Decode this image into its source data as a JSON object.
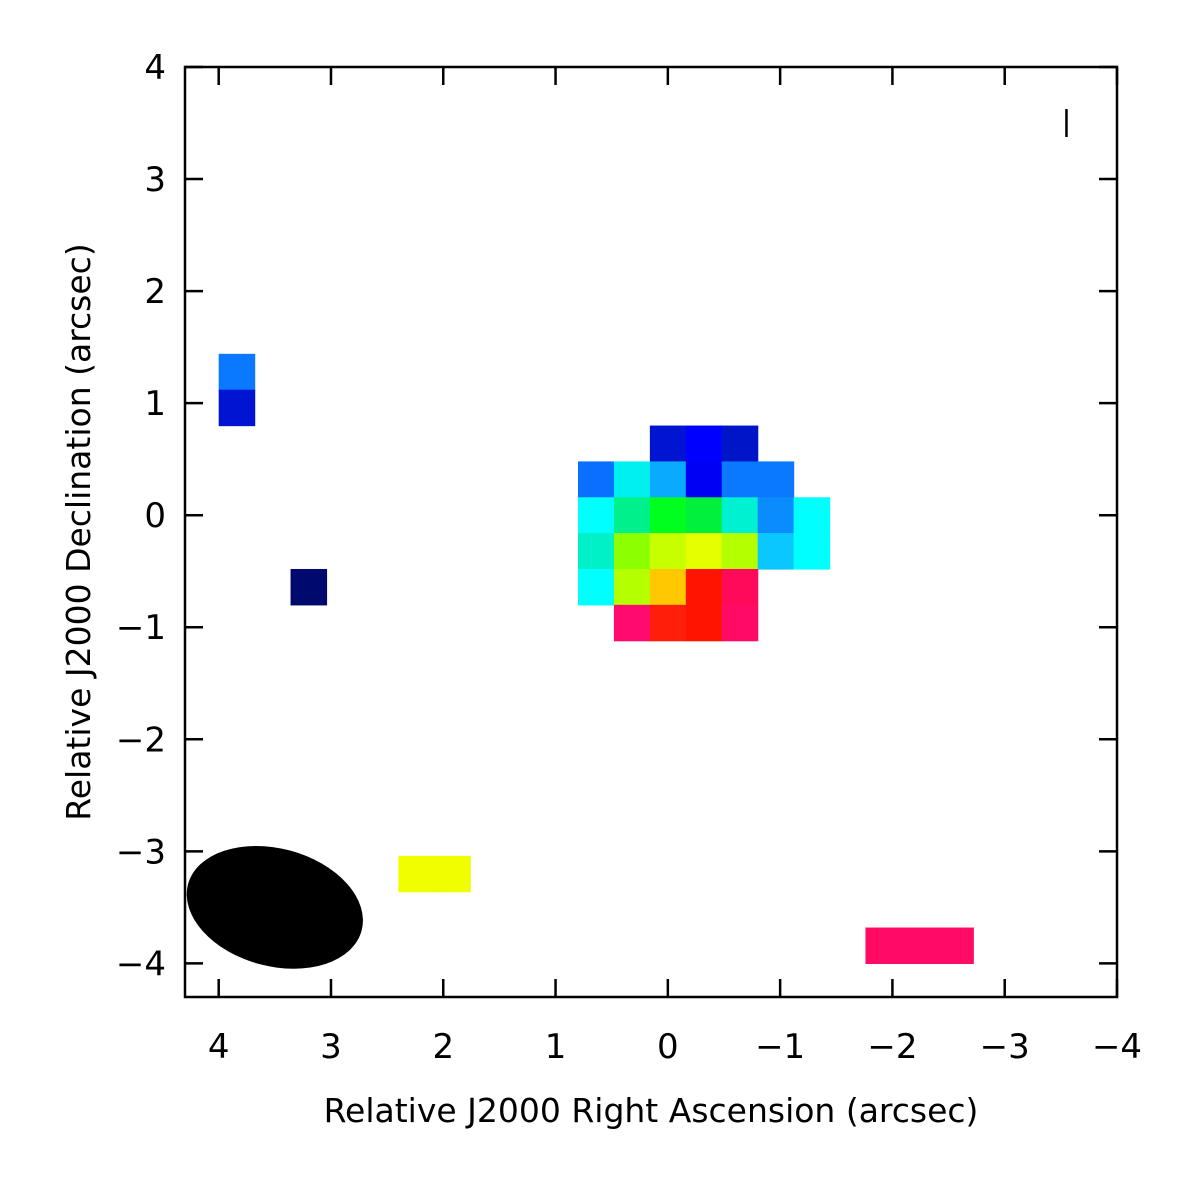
{
  "chart_data": {
    "type": "heatmap",
    "title": "",
    "xlabel": "Relative J2000 Right Ascension (arcsec)",
    "ylabel": "Relative J2000 Declination (arcsec)",
    "xlim": [
      4.3,
      -4.0
    ],
    "ylim": [
      -4.3,
      4.0
    ],
    "x_reversed": true,
    "xticks": [
      4,
      3,
      2,
      1,
      0,
      -1,
      -2,
      -3,
      -4
    ],
    "xtick_labels": [
      "4",
      "3",
      "2",
      "1",
      "0",
      "−1",
      "−2",
      "−3",
      "−4"
    ],
    "yticks": [
      4,
      3,
      2,
      1,
      0,
      -1,
      -2,
      -3,
      -4
    ],
    "ytick_labels": [
      "4",
      "3",
      "2",
      "1",
      "0",
      "−1",
      "−2",
      "−3",
      "−4"
    ],
    "grid": false,
    "pixel_size_arcsec": 0.32,
    "pixels": [
      {
        "ra": 3.84,
        "dec": 1.28,
        "color": "#0a78ff"
      },
      {
        "ra": 3.84,
        "dec": 0.96,
        "color": "#0014d2"
      },
      {
        "ra": 3.2,
        "dec": -0.64,
        "color": "#000a6e"
      },
      {
        "ra": 0.0,
        "dec": 0.64,
        "color": "#0014d2"
      },
      {
        "ra": -0.32,
        "dec": 0.64,
        "color": "#0000ff"
      },
      {
        "ra": -0.64,
        "dec": 0.64,
        "color": "#0014c8"
      },
      {
        "ra": 0.64,
        "dec": 0.32,
        "color": "#0a6eff"
      },
      {
        "ra": 0.32,
        "dec": 0.32,
        "color": "#00f0f0"
      },
      {
        "ra": 0.0,
        "dec": 0.32,
        "color": "#0aaaff"
      },
      {
        "ra": -0.32,
        "dec": 0.32,
        "color": "#0000f5"
      },
      {
        "ra": -0.64,
        "dec": 0.32,
        "color": "#0a78ff"
      },
      {
        "ra": -0.96,
        "dec": 0.32,
        "color": "#0a78ff"
      },
      {
        "ra": 0.64,
        "dec": 0.0,
        "color": "#00ffff"
      },
      {
        "ra": 0.32,
        "dec": 0.0,
        "color": "#00f08c"
      },
      {
        "ra": 0.0,
        "dec": 0.0,
        "color": "#00ff1e"
      },
      {
        "ra": -0.32,
        "dec": 0.0,
        "color": "#00f03c"
      },
      {
        "ra": -0.64,
        "dec": 0.0,
        "color": "#00f0d2"
      },
      {
        "ra": -0.96,
        "dec": 0.0,
        "color": "#0a8cff"
      },
      {
        "ra": -1.28,
        "dec": 0.0,
        "color": "#00ffff"
      },
      {
        "ra": 0.64,
        "dec": -0.32,
        "color": "#00f0c8"
      },
      {
        "ra": 0.32,
        "dec": -0.32,
        "color": "#8cff00"
      },
      {
        "ra": 0.0,
        "dec": -0.32,
        "color": "#c8ff00"
      },
      {
        "ra": -0.32,
        "dec": -0.32,
        "color": "#e6ff00"
      },
      {
        "ra": -0.64,
        "dec": -0.32,
        "color": "#b4ff00"
      },
      {
        "ra": -0.96,
        "dec": -0.32,
        "color": "#0ac8ff"
      },
      {
        "ra": -1.28,
        "dec": -0.32,
        "color": "#00ffff"
      },
      {
        "ra": 0.64,
        "dec": -0.64,
        "color": "#00ffff"
      },
      {
        "ra": 0.32,
        "dec": -0.64,
        "color": "#b4ff00"
      },
      {
        "ra": 0.0,
        "dec": -0.64,
        "color": "#ffc800"
      },
      {
        "ra": -0.32,
        "dec": -0.64,
        "color": "#ff1400"
      },
      {
        "ra": -0.64,
        "dec": -0.64,
        "color": "#ff0a5a"
      },
      {
        "ra": 0.32,
        "dec": -0.96,
        "color": "#ff0a6e"
      },
      {
        "ra": 0.0,
        "dec": -0.96,
        "color": "#ff1e0a"
      },
      {
        "ra": -0.32,
        "dec": -0.96,
        "color": "#ff1400"
      },
      {
        "ra": -0.64,
        "dec": -0.96,
        "color": "#ff0a64"
      },
      {
        "ra": 2.24,
        "dec": -3.2,
        "color": "#f0ff00"
      },
      {
        "ra": 1.92,
        "dec": -3.2,
        "color": "#f0ff00"
      },
      {
        "ra": -1.92,
        "dec": -3.84,
        "color": "#ff0a64"
      },
      {
        "ra": -2.24,
        "dec": -3.84,
        "color": "#ff0a64"
      },
      {
        "ra": -2.56,
        "dec": -3.84,
        "color": "#ff0a64"
      }
    ],
    "beam": {
      "ra": 3.5,
      "dec": -3.5,
      "major_arcsec": 1.6,
      "minor_arcsec": 1.05,
      "pa_deg": -75,
      "color": "#000000"
    },
    "vector_scale_bar": {
      "ra": -3.55,
      "dec": 3.5,
      "length_arcsec": 0.25,
      "orientation": "vertical"
    }
  }
}
